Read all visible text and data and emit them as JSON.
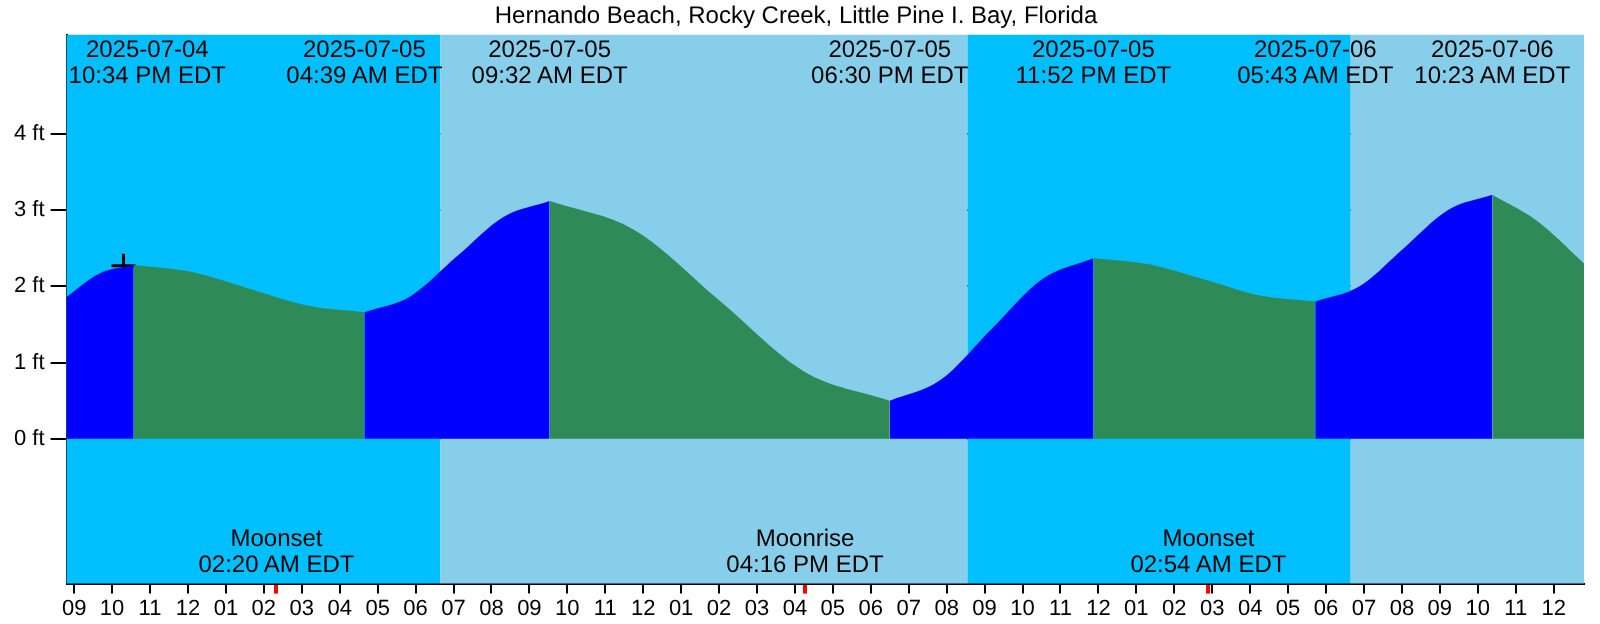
{
  "chart_data": {
    "type": "area",
    "title": "Hernando Beach, Rocky Creek, Little Pine I. Bay, Florida",
    "xlim": [
      "2025-07-04T20:48",
      "2025-07-06T12:48"
    ],
    "ylim": [
      -1.9,
      5.3
    ],
    "xticks": [
      {
        "value": "2025-07-04T21:00",
        "label": "09"
      },
      {
        "value": "2025-07-04T22:00",
        "label": "10"
      },
      {
        "value": "2025-07-04T23:00",
        "label": "11"
      },
      {
        "value": "2025-07-05T00:00",
        "label": "12"
      },
      {
        "value": "2025-07-05T01:00",
        "label": "01"
      },
      {
        "value": "2025-07-05T02:00",
        "label": "02"
      },
      {
        "value": "2025-07-05T02:20",
        "label": null
      },
      {
        "value": "2025-07-05T03:00",
        "label": "03"
      },
      {
        "value": "2025-07-05T04:00",
        "label": "04"
      },
      {
        "value": "2025-07-05T05:00",
        "label": "05"
      },
      {
        "value": "2025-07-05T06:00",
        "label": "06"
      },
      {
        "value": "2025-07-05T07:00",
        "label": "07"
      },
      {
        "value": "2025-07-05T08:00",
        "label": "08"
      },
      {
        "value": "2025-07-05T09:00",
        "label": "09"
      },
      {
        "value": "2025-07-05T10:00",
        "label": "10"
      },
      {
        "value": "2025-07-05T11:00",
        "label": "11"
      },
      {
        "value": "2025-07-05T12:00",
        "label": "12"
      },
      {
        "value": "2025-07-05T13:00",
        "label": "01"
      },
      {
        "value": "2025-07-05T14:00",
        "label": "02"
      },
      {
        "value": "2025-07-05T15:00",
        "label": "03"
      },
      {
        "value": "2025-07-05T16:00",
        "label": "04"
      },
      {
        "value": "2025-07-05T16:16",
        "label": null
      },
      {
        "value": "2025-07-05T17:00",
        "label": "05"
      },
      {
        "value": "2025-07-05T18:00",
        "label": "06"
      },
      {
        "value": "2025-07-05T19:00",
        "label": "07"
      },
      {
        "value": "2025-07-05T20:00",
        "label": "08"
      },
      {
        "value": "2025-07-05T21:00",
        "label": "09"
      },
      {
        "value": "2025-07-05T22:00",
        "label": "10"
      },
      {
        "value": "2025-07-05T23:00",
        "label": "11"
      },
      {
        "value": "2025-07-06T00:00",
        "label": "12"
      },
      {
        "value": "2025-07-06T01:00",
        "label": "01"
      },
      {
        "value": "2025-07-06T02:00",
        "label": "02"
      },
      {
        "value": "2025-07-06T02:54",
        "label": null
      },
      {
        "value": "2025-07-06T03:00",
        "label": "03"
      },
      {
        "value": "2025-07-06T04:00",
        "label": "04"
      },
      {
        "value": "2025-07-06T05:00",
        "label": "05"
      },
      {
        "value": "2025-07-06T06:00",
        "label": "06"
      },
      {
        "value": "2025-07-06T07:00",
        "label": "07"
      },
      {
        "value": "2025-07-06T08:00",
        "label": "08"
      },
      {
        "value": "2025-07-06T09:00",
        "label": "09"
      },
      {
        "value": "2025-07-06T10:00",
        "label": "10"
      },
      {
        "value": "2025-07-06T11:00",
        "label": "11"
      },
      {
        "value": "2025-07-06T12:00",
        "label": "12"
      }
    ],
    "yticks": [
      {
        "value": 0,
        "label": "0 ft"
      },
      {
        "value": 1,
        "label": "1 ft"
      },
      {
        "value": 2,
        "label": "2 ft"
      },
      {
        "value": 3,
        "label": "3 ft"
      },
      {
        "value": 4,
        "label": "4 ft"
      }
    ],
    "grid": "y",
    "legend": false,
    "bands": [
      {
        "axis": "x",
        "from": "2025-07-04T20:48",
        "to": "2025-07-05T06:39",
        "color": "#00bfff"
      },
      {
        "axis": "x",
        "from": "2025-07-05T06:39",
        "to": "2025-07-05T20:33",
        "color": "#87ceeb"
      },
      {
        "axis": "x",
        "from": "2025-07-05T20:33",
        "to": "2025-07-06T06:39",
        "color": "#00bfff"
      },
      {
        "axis": "x",
        "from": "2025-07-06T06:39",
        "to": "2025-07-06T12:48",
        "color": "#87ceeb"
      }
    ],
    "series": [
      {
        "color": "#0000ff",
        "x": [
          "2025-07-04T20:48",
          "2025-07-04T21:40",
          "2025-07-04T22:34"
        ],
        "values": [
          1.86,
          2.17,
          2.28
        ]
      },
      {
        "color": "#2e8b57",
        "x": [
          "2025-07-04T22:34",
          "2025-07-05T00:05",
          "2025-07-05T01:36",
          "2025-07-05T03:08",
          "2025-07-05T04:39"
        ],
        "values": [
          2.28,
          2.19,
          1.97,
          1.75,
          1.66
        ]
      },
      {
        "color": "#0000ff",
        "x": [
          "2025-07-05T04:39",
          "2025-07-05T05:52",
          "2025-07-05T07:05",
          "2025-07-05T08:19",
          "2025-07-05T09:32"
        ],
        "values": [
          1.66,
          1.87,
          2.39,
          2.91,
          3.12
        ]
      },
      {
        "color": "#2e8b57",
        "x": [
          "2025-07-05T09:32",
          "2025-07-05T11:46",
          "2025-07-05T14:01",
          "2025-07-05T16:15",
          "2025-07-05T18:30"
        ],
        "values": [
          3.12,
          2.74,
          1.81,
          0.88,
          0.5
        ]
      },
      {
        "color": "#0000ff",
        "x": [
          "2025-07-05T18:30",
          "2025-07-05T19:50",
          "2025-07-05T21:11",
          "2025-07-05T22:32",
          "2025-07-05T23:52"
        ],
        "values": [
          0.5,
          0.77,
          1.44,
          2.1,
          2.37
        ]
      },
      {
        "color": "#2e8b57",
        "x": [
          "2025-07-05T23:52",
          "2025-07-06T01:20",
          "2025-07-06T02:48",
          "2025-07-06T04:15",
          "2025-07-06T05:43"
        ],
        "values": [
          2.37,
          2.29,
          2.09,
          1.88,
          1.8
        ]
      },
      {
        "color": "#0000ff",
        "x": [
          "2025-07-06T05:43",
          "2025-07-06T06:53",
          "2025-07-06T08:03",
          "2025-07-06T09:13",
          "2025-07-06T10:23"
        ],
        "values": [
          1.8,
          2.0,
          2.5,
          3.0,
          3.2
        ]
      },
      {
        "color": "#2e8b57",
        "x": [
          "2025-07-06T10:23",
          "2025-07-06T11:35",
          "2025-07-06T12:48"
        ],
        "values": [
          3.2,
          2.85,
          2.3
        ]
      },
      {
        "type": "scatter",
        "marker": "cross",
        "color": "#000000",
        "x": [
          "2025-07-04T22:18"
        ],
        "values": [
          2.27
        ]
      }
    ],
    "annotations": [
      "2025-07-04\n10:34 PM EDT",
      "2025-07-05\n04:39 AM EDT",
      "2025-07-05\n09:32 AM EDT",
      "2025-07-05\n06:30 PM EDT",
      "2025-07-05\n11:52 PM EDT",
      "2025-07-06\n05:43 AM EDT",
      "2025-07-06\n10:23 AM EDT",
      "Moonset\n02:20 AM EDT",
      "Moonrise\n04:16 PM EDT",
      "Moonset\n02:54 AM EDT"
    ]
  }
}
